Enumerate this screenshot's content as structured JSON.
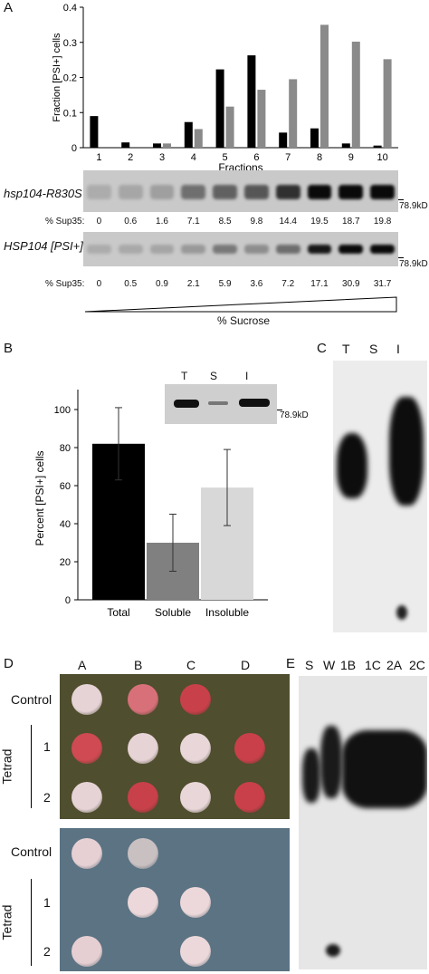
{
  "panelA": {
    "letter": "A",
    "chart_data": {
      "type": "bar",
      "categories": [
        "1",
        "2",
        "3",
        "4",
        "5",
        "6",
        "7",
        "8",
        "9",
        "10"
      ],
      "series": [
        {
          "values": [
            0.09,
            0.015,
            0.012,
            0.073,
            0.223,
            0.263,
            0.043,
            0.055,
            0.012,
            0.006
          ]
        },
        {
          "values": [
            0.0,
            0.0,
            0.012,
            0.053,
            0.117,
            0.165,
            0.195,
            0.35,
            0.302,
            0.252
          ]
        }
      ],
      "colors": [
        "#000000",
        "#8a8a8a"
      ],
      "yticks": [
        "0",
        "0.1",
        "0.2",
        "0.3",
        "0.4"
      ],
      "ylim": [
        0,
        0.4
      ],
      "ylabel": "Fraction [PSI+] cells",
      "xlabel": "Fractions"
    },
    "blot1": {
      "label": "hsp104-R830S",
      "marker": "78.9kD",
      "sup_label": "% Sup35:",
      "sup_values": [
        "0",
        "0.6",
        "1.6",
        "7.1",
        "8.5",
        "9.8",
        "14.4",
        "19.5",
        "18.7",
        "19.8"
      ]
    },
    "blot2": {
      "label": "HSP104 [PSI+]",
      "marker": "78.9kD",
      "sup_label": "% Sup35:",
      "sup_values": [
        "0",
        "0.5",
        "0.9",
        "2.1",
        "5.9",
        "3.6",
        "7.2",
        "17.1",
        "30.9",
        "31.7"
      ]
    },
    "gradient_label": "% Sucrose"
  },
  "panelB": {
    "letter": "B",
    "chart_data": {
      "type": "bar",
      "categories": [
        "Total",
        "Soluble",
        "Insoluble"
      ],
      "values": [
        82,
        30,
        59
      ],
      "error": [
        19,
        15,
        20
      ],
      "colors": [
        "#000000",
        "#808080",
        "#d8d8d8"
      ],
      "yticks": [
        "0",
        "20",
        "40",
        "60",
        "80",
        "100"
      ],
      "ylim": [
        0,
        100
      ],
      "ylabel": "Percent [PSI+] cells"
    },
    "inset": {
      "lanes": [
        "T",
        "S",
        "I"
      ],
      "marker": "78.9kD"
    }
  },
  "panelC": {
    "letter": "C",
    "lanes": [
      "T",
      "S",
      "I"
    ]
  },
  "panelD": {
    "letter": "D",
    "columns": [
      "A",
      "B",
      "C",
      "D"
    ],
    "top_rows": [
      "Control",
      "1",
      "2"
    ],
    "bottom_rows": [
      "Control",
      "1",
      "2"
    ],
    "group_label": "Tetrad"
  },
  "panelE": {
    "letter": "E",
    "lanes": [
      "S",
      "W",
      "1B",
      "1C",
      "2A",
      "2C"
    ]
  }
}
